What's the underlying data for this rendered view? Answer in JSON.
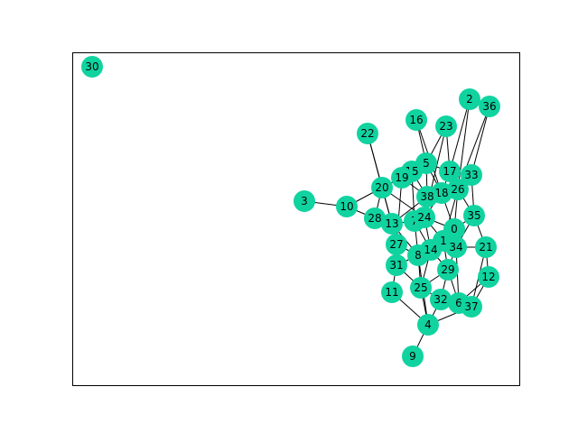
{
  "graph": {
    "node_color": "#10d3a0",
    "edge_color": "#000000",
    "frame_color": "#000000",
    "nodes": [
      {
        "id": "0"
      },
      {
        "id": "1"
      },
      {
        "id": "2"
      },
      {
        "id": "3"
      },
      {
        "id": "4"
      },
      {
        "id": "5"
      },
      {
        "id": "6"
      },
      {
        "id": "7"
      },
      {
        "id": "8"
      },
      {
        "id": "9"
      },
      {
        "id": "10"
      },
      {
        "id": "11"
      },
      {
        "id": "12"
      },
      {
        "id": "13"
      },
      {
        "id": "14"
      },
      {
        "id": "15"
      },
      {
        "id": "16"
      },
      {
        "id": "17"
      },
      {
        "id": "18"
      },
      {
        "id": "19"
      },
      {
        "id": "20"
      },
      {
        "id": "21"
      },
      {
        "id": "22"
      },
      {
        "id": "23"
      },
      {
        "id": "24"
      },
      {
        "id": "25"
      },
      {
        "id": "26"
      },
      {
        "id": "27"
      },
      {
        "id": "28"
      },
      {
        "id": "29"
      },
      {
        "id": "30"
      },
      {
        "id": "31"
      },
      {
        "id": "32"
      },
      {
        "id": "33"
      },
      {
        "id": "34"
      },
      {
        "id": "35"
      },
      {
        "id": "36"
      },
      {
        "id": "37"
      },
      {
        "id": "38"
      }
    ],
    "edges": [
      [
        "3",
        "10"
      ],
      [
        "10",
        "28"
      ],
      [
        "10",
        "20"
      ],
      [
        "22",
        "20"
      ],
      [
        "22",
        "13"
      ],
      [
        "16",
        "5"
      ],
      [
        "16",
        "18"
      ],
      [
        "23",
        "17"
      ],
      [
        "23",
        "5"
      ],
      [
        "23",
        "24"
      ],
      [
        "2",
        "36"
      ],
      [
        "2",
        "26"
      ],
      [
        "2",
        "17"
      ],
      [
        "36",
        "33"
      ],
      [
        "36",
        "26"
      ],
      [
        "19",
        "20"
      ],
      [
        "19",
        "38"
      ],
      [
        "19",
        "27"
      ],
      [
        "19",
        "15"
      ],
      [
        "15",
        "5"
      ],
      [
        "15",
        "7"
      ],
      [
        "15",
        "38"
      ],
      [
        "5",
        "38"
      ],
      [
        "5",
        "18"
      ],
      [
        "5",
        "17"
      ],
      [
        "17",
        "33"
      ],
      [
        "17",
        "26"
      ],
      [
        "17",
        "18"
      ],
      [
        "33",
        "26"
      ],
      [
        "33",
        "35"
      ],
      [
        "20",
        "28"
      ],
      [
        "20",
        "24"
      ],
      [
        "20",
        "13"
      ],
      [
        "38",
        "18"
      ],
      [
        "38",
        "24"
      ],
      [
        "38",
        "13"
      ],
      [
        "18",
        "26"
      ],
      [
        "18",
        "24"
      ],
      [
        "18",
        "0"
      ],
      [
        "26",
        "0"
      ],
      [
        "26",
        "35"
      ],
      [
        "26",
        "1"
      ],
      [
        "28",
        "13"
      ],
      [
        "13",
        "7"
      ],
      [
        "13",
        "27"
      ],
      [
        "13",
        "8"
      ],
      [
        "7",
        "24"
      ],
      [
        "7",
        "8"
      ],
      [
        "7",
        "14"
      ],
      [
        "24",
        "0"
      ],
      [
        "24",
        "1"
      ],
      [
        "24",
        "14"
      ],
      [
        "0",
        "1"
      ],
      [
        "0",
        "35"
      ],
      [
        "0",
        "34"
      ],
      [
        "35",
        "21"
      ],
      [
        "35",
        "34"
      ],
      [
        "27",
        "31"
      ],
      [
        "27",
        "8"
      ],
      [
        "8",
        "14"
      ],
      [
        "8",
        "25"
      ],
      [
        "8",
        "31"
      ],
      [
        "14",
        "1"
      ],
      [
        "14",
        "34"
      ],
      [
        "14",
        "29"
      ],
      [
        "14",
        "25"
      ],
      [
        "1",
        "34"
      ],
      [
        "1",
        "29"
      ],
      [
        "34",
        "21"
      ],
      [
        "34",
        "29"
      ],
      [
        "34",
        "6"
      ],
      [
        "21",
        "12"
      ],
      [
        "21",
        "37"
      ],
      [
        "31",
        "11"
      ],
      [
        "31",
        "25"
      ],
      [
        "29",
        "32"
      ],
      [
        "29",
        "6"
      ],
      [
        "29",
        "25"
      ],
      [
        "12",
        "37"
      ],
      [
        "12",
        "6"
      ],
      [
        "11",
        "4"
      ],
      [
        "25",
        "4"
      ],
      [
        "25",
        "32"
      ],
      [
        "32",
        "6"
      ],
      [
        "32",
        "4"
      ],
      [
        "6",
        "37"
      ],
      [
        "4",
        "9"
      ],
      [
        "4",
        "37"
      ],
      [
        "4",
        "8"
      ]
    ]
  }
}
